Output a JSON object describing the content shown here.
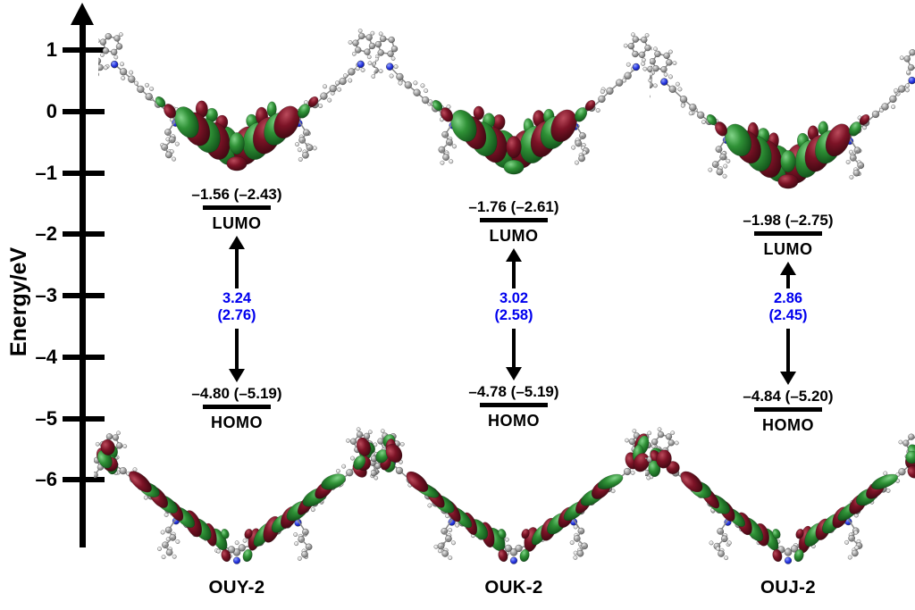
{
  "figure": {
    "description": "HOMO/LUMO molecular orbital energy level diagram for three molecules"
  },
  "axis": {
    "label": "Energy/eV",
    "ticks": [
      {
        "label": "1",
        "value": 1
      },
      {
        "label": "0",
        "value": 0
      },
      {
        "label": "–1",
        "value": -1
      },
      {
        "label": "–2",
        "value": -2
      },
      {
        "label": "–3",
        "value": -3
      },
      {
        "label": "–4",
        "value": -4
      },
      {
        "label": "–5",
        "value": -5
      },
      {
        "label": "–6",
        "value": -6
      }
    ]
  },
  "molecules": [
    {
      "name": "OUY-2",
      "lumo": {
        "label": "LUMO",
        "energy_text": "–1.56 (–2.43)",
        "energy_ev": -1.56,
        "paren_ev": -2.43
      },
      "homo": {
        "label": "HOMO",
        "energy_text": "–4.80 (–5.19)",
        "energy_ev": -4.8,
        "paren_ev": -5.19
      },
      "gap": {
        "text": "3.24",
        "paren_text": "(2.76)",
        "ev": 3.24,
        "paren_ev": 2.76
      }
    },
    {
      "name": "OUK-2",
      "lumo": {
        "label": "LUMO",
        "energy_text": "–1.76 (–2.61)",
        "energy_ev": -1.76,
        "paren_ev": -2.61
      },
      "homo": {
        "label": "HOMO",
        "energy_text": "–4.78 (–5.19)",
        "energy_ev": -4.78,
        "paren_ev": -5.19
      },
      "gap": {
        "text": "3.02",
        "paren_text": "(2.58)",
        "ev": 3.02,
        "paren_ev": 2.58
      }
    },
    {
      "name": "OUJ-2",
      "lumo": {
        "label": "LUMO",
        "energy_text": "–1.98 (–2.75)",
        "energy_ev": -1.98,
        "paren_ev": -2.75
      },
      "homo": {
        "label": "HOMO",
        "energy_text": "–4.84 (–5.20)",
        "energy_ev": -4.84,
        "paren_ev": -5.2
      },
      "gap": {
        "text": "2.86",
        "paren_text": "(2.45)",
        "ev": 2.86,
        "paren_ev": 2.45
      }
    }
  ],
  "chart_data": {
    "type": "table",
    "ylabel": "Energy/eV",
    "ylim": [
      -6.9,
      1.6
    ],
    "yticks": [
      1,
      0,
      -1,
      -2,
      -3,
      -4,
      -5,
      -6
    ],
    "series": [
      {
        "name": "OUY-2",
        "LUMO_eV": -1.56,
        "LUMO_paren_eV": -2.43,
        "HOMO_eV": -4.8,
        "HOMO_paren_eV": -5.19,
        "gap_eV": 3.24,
        "gap_paren_eV": 2.76
      },
      {
        "name": "OUK-2",
        "LUMO_eV": -1.76,
        "LUMO_paren_eV": -2.61,
        "HOMO_eV": -4.78,
        "HOMO_paren_eV": -5.19,
        "gap_eV": 3.02,
        "gap_paren_eV": 2.58
      },
      {
        "name": "OUJ-2",
        "LUMO_eV": -1.98,
        "LUMO_paren_eV": -2.75,
        "HOMO_eV": -4.84,
        "HOMO_paren_eV": -5.2,
        "gap_eV": 2.86,
        "gap_paren_eV": 2.45
      }
    ]
  },
  "colors": {
    "gap_text": "#0000ee",
    "level_line": "#000000",
    "axis": "#000000",
    "lobe_green": "#2f9136",
    "lobe_red": "#7c1326",
    "atom_carbon": "#969696",
    "atom_hydrogen": "#d9d9d9",
    "atom_nitrogen": "#2433e0",
    "atom_sulfur": "#e3b505"
  }
}
